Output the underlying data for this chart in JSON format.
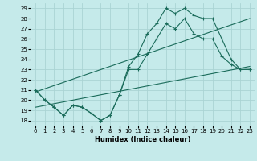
{
  "xlabel": "Humidex (Indice chaleur)",
  "bg_color": "#c5eaea",
  "grid_color": "#aad4d4",
  "line_color": "#1a6b5a",
  "xlim": [
    -0.5,
    23.5
  ],
  "ylim": [
    17.5,
    29.5
  ],
  "xticks": [
    0,
    1,
    2,
    3,
    4,
    5,
    6,
    7,
    8,
    9,
    10,
    11,
    12,
    13,
    14,
    15,
    16,
    17,
    18,
    19,
    20,
    21,
    22,
    23
  ],
  "yticks": [
    18,
    19,
    20,
    21,
    22,
    23,
    24,
    25,
    26,
    27,
    28,
    29
  ],
  "line1_x": [
    0,
    1,
    2,
    3,
    4,
    5,
    6,
    7,
    8,
    9,
    10,
    11,
    12,
    13,
    14,
    15,
    16,
    17,
    18,
    19,
    20,
    21,
    22,
    23
  ],
  "line1_y": [
    21.0,
    20.0,
    19.3,
    18.5,
    19.5,
    19.3,
    18.7,
    18.0,
    18.5,
    20.5,
    23.3,
    24.5,
    26.5,
    27.5,
    29.0,
    28.5,
    29.0,
    28.3,
    28.0,
    28.0,
    26.0,
    24.0,
    23.0,
    23.0
  ],
  "line2_x": [
    0,
    1,
    2,
    3,
    4,
    5,
    6,
    7,
    8,
    9,
    10,
    11,
    12,
    13,
    14,
    15,
    16,
    17,
    18,
    19,
    20,
    21,
    22,
    23
  ],
  "line2_y": [
    21.0,
    20.0,
    19.3,
    18.5,
    19.5,
    19.3,
    18.7,
    18.0,
    18.5,
    20.5,
    23.0,
    23.0,
    24.5,
    26.0,
    27.5,
    27.0,
    28.0,
    26.5,
    26.0,
    26.0,
    24.3,
    23.5,
    23.0,
    23.0
  ],
  "line3_x": [
    0,
    23
  ],
  "line3_y": [
    20.8,
    28.0
  ],
  "line4_x": [
    0,
    23
  ],
  "line4_y": [
    19.3,
    23.3
  ]
}
